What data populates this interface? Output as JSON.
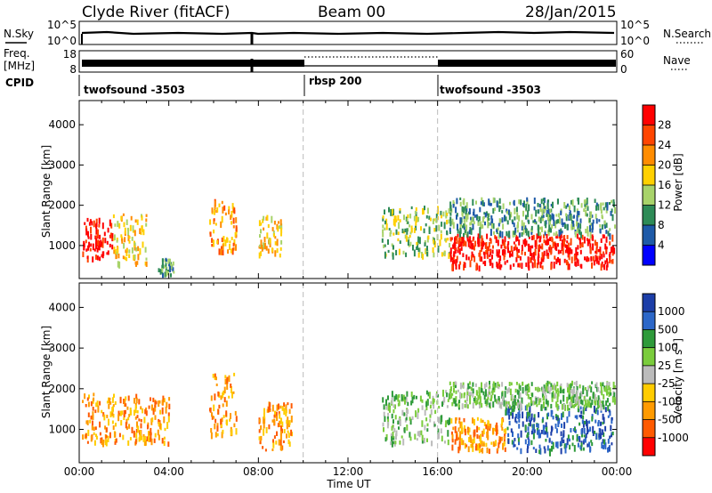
{
  "header": {
    "station": "Clyde River (fitACF)",
    "beam": "Beam 00",
    "date": "28/Jan/2015"
  },
  "top_panels": {
    "nsky_label": "N.Sky",
    "nsky_ticks": [
      "10^5",
      "10^0"
    ],
    "nsearch_label": "N.Search",
    "nsearch_ticks": [
      "10^5",
      "10^0"
    ],
    "freq_label": "Freq.",
    "freq_unit": "[MHz]",
    "freq_ticks": [
      "18",
      "8"
    ],
    "nave_label": "Nave",
    "nave_ticks": [
      "60",
      "0"
    ],
    "cpid_label": "CPID",
    "cpid_segments": [
      {
        "name": "twofsound -3503",
        "start_hour": 0,
        "end_hour": 10
      },
      {
        "name": "rbsp 200",
        "start_hour": 10,
        "end_hour": 16
      },
      {
        "name": "twofsound -3503",
        "start_hour": 16,
        "end_hour": 24
      }
    ]
  },
  "colorbars": {
    "power": {
      "label": "Power [dB]",
      "ticks": [
        "28",
        "24",
        "20",
        "16",
        "12",
        "8",
        "4"
      ],
      "colors": [
        "#ff0000",
        "#ff4500",
        "#ff8c00",
        "#ffd000",
        "#a8d36a",
        "#2e8b57",
        "#1e5aa8",
        "#0000ff"
      ]
    },
    "velocity": {
      "label": "Velocity [m s",
      "label_sup": "-1",
      "label_end": "]",
      "ticks": [
        "1000",
        "500",
        "100",
        "25",
        "-25",
        "-100",
        "-500",
        "-1000"
      ],
      "colors": [
        "#1c3ea8",
        "#2c67c8",
        "#2e9a3a",
        "#7acc3c",
        "#bbbbbb",
        "#ffcc00",
        "#ff9a00",
        "#ff5a00",
        "#ff0000"
      ]
    }
  },
  "chart_data": [
    {
      "type": "heatmap",
      "name": "power",
      "ylabel": "Slant Range [km]",
      "xlabel": "Time UT",
      "x_ticks": [
        "00:00",
        "04:00",
        "08:00",
        "12:00",
        "16:00",
        "20:00",
        "00:00"
      ],
      "y_ticks": [
        "1000",
        "2000",
        "3000",
        "4000"
      ],
      "xlim": [
        0,
        24
      ],
      "ylim": [
        180,
        4600
      ],
      "regions": [
        {
          "x0": 0.1,
          "x1": 1.5,
          "y0": 700,
          "y1": 1700,
          "level": 0
        },
        {
          "x0": 1.5,
          "x1": 3.0,
          "y0": 600,
          "y1": 1800,
          "level": 3
        },
        {
          "x0": 3.5,
          "x1": 4.2,
          "y0": 300,
          "y1": 700,
          "level": 5
        },
        {
          "x0": 5.8,
          "x1": 7.0,
          "y0": 900,
          "y1": 2200,
          "level": 2
        },
        {
          "x0": 8.0,
          "x1": 9.0,
          "y0": 800,
          "y1": 1800,
          "level": 3
        },
        {
          "x0": 13.5,
          "x1": 16.5,
          "y0": 800,
          "y1": 2000,
          "level": 4
        },
        {
          "x0": 16.5,
          "x1": 23.9,
          "y0": 500,
          "y1": 1300,
          "level": 0
        },
        {
          "x0": 16.5,
          "x1": 23.9,
          "y0": 1300,
          "y1": 2200,
          "level": 5
        }
      ]
    },
    {
      "type": "heatmap",
      "name": "velocity",
      "ylabel": "Slant Range [km]",
      "xlabel": "Time UT",
      "x_ticks": [
        "00:00",
        "04:00",
        "08:00",
        "12:00",
        "16:00",
        "20:00",
        "00:00"
      ],
      "y_ticks": [
        "1000",
        "2000",
        "3000",
        "4000"
      ],
      "xlim": [
        0,
        24
      ],
      "ylim": [
        180,
        4600
      ],
      "regions": [
        {
          "x0": 0.1,
          "x1": 4.0,
          "y0": 700,
          "y1": 1900,
          "level": 6
        },
        {
          "x0": 5.8,
          "x1": 7.0,
          "y0": 900,
          "y1": 2400,
          "level": 6
        },
        {
          "x0": 8.0,
          "x1": 9.5,
          "y0": 500,
          "y1": 1700,
          "level": 6
        },
        {
          "x0": 13.5,
          "x1": 16.5,
          "y0": 700,
          "y1": 2000,
          "level": 3
        },
        {
          "x0": 16.5,
          "x1": 19.0,
          "y0": 500,
          "y1": 1300,
          "level": 6
        },
        {
          "x0": 19.0,
          "x1": 23.9,
          "y0": 500,
          "y1": 1600,
          "level": 1
        },
        {
          "x0": 16.5,
          "x1": 23.9,
          "y0": 1600,
          "y1": 2200,
          "level": 3
        }
      ]
    }
  ]
}
